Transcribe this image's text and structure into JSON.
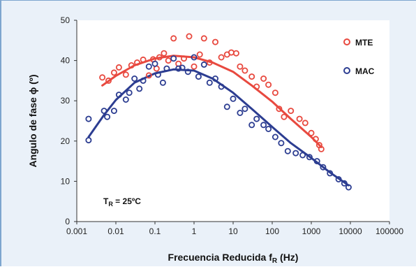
{
  "chart_data": {
    "type": "scatter",
    "xlabel": "Frecuencia Reducida",
    "xlabel_sub": "R",
    "xlabel_symbol": "f",
    "xlabel_unit": "(Hz)",
    "ylabel": "Angulo de fase ϕ (º)",
    "x_scale": "log",
    "xlim": [
      0.001,
      100000
    ],
    "ylim": [
      0,
      50
    ],
    "grid": false,
    "legend_position": "top-right",
    "x_ticks": [
      {
        "value": 0.001,
        "label": "0.001"
      },
      {
        "value": 0.01,
        "label": "0.01"
      },
      {
        "value": 0.1,
        "label": "0.1"
      },
      {
        "value": 1,
        "label": "1"
      },
      {
        "value": 10,
        "label": "10"
      },
      {
        "value": 100,
        "label": "100"
      },
      {
        "value": 1000,
        "label": "1000"
      },
      {
        "value": 10000,
        "label": "10000"
      },
      {
        "value": 100000,
        "label": "100000"
      }
    ],
    "y_ticks": [
      {
        "value": 0,
        "label": "0"
      },
      {
        "value": 10,
        "label": "10"
      },
      {
        "value": 20,
        "label": "20"
      },
      {
        "value": 30,
        "label": "30"
      },
      {
        "value": 40,
        "label": "40"
      },
      {
        "value": 50,
        "label": "50"
      }
    ],
    "annotation": {
      "main": "T",
      "sub": "R",
      "rest": " = 25ºC"
    },
    "series": [
      {
        "name": "MTE",
        "color": "#e8493f",
        "marker": "open-circle",
        "points": [
          [
            0.0045,
            35.8
          ],
          [
            0.0065,
            35.0
          ],
          [
            0.009,
            37.0
          ],
          [
            0.012,
            38.3
          ],
          [
            0.018,
            36.5
          ],
          [
            0.025,
            38.8
          ],
          [
            0.035,
            39.5
          ],
          [
            0.05,
            40.2
          ],
          [
            0.07,
            36.3
          ],
          [
            0.09,
            40.3
          ],
          [
            0.11,
            38.0
          ],
          [
            0.13,
            40.8
          ],
          [
            0.17,
            41.8
          ],
          [
            0.22,
            40.0
          ],
          [
            0.3,
            45.5
          ],
          [
            0.4,
            39.2
          ],
          [
            0.55,
            40.5
          ],
          [
            0.75,
            46.0
          ],
          [
            1.0,
            38.5
          ],
          [
            1.4,
            41.5
          ],
          [
            1.8,
            45.5
          ],
          [
            2.5,
            39.5
          ],
          [
            3.5,
            44.6
          ],
          [
            5.0,
            40.8
          ],
          [
            7.0,
            41.5
          ],
          [
            9.0,
            42.0
          ],
          [
            12.0,
            41.8
          ],
          [
            15.0,
            38.5
          ],
          [
            20.0,
            37.5
          ],
          [
            30.0,
            36.0
          ],
          [
            40.0,
            33.5
          ],
          [
            60.0,
            35.5
          ],
          [
            80.0,
            34.0
          ],
          [
            120.0,
            32.0
          ],
          [
            150.0,
            28.0
          ],
          [
            200.0,
            26.0
          ],
          [
            300.0,
            27.5
          ],
          [
            500.0,
            25.5
          ],
          [
            700.0,
            24.5
          ],
          [
            1000.0,
            22.0
          ],
          [
            1300.0,
            20.5
          ],
          [
            1600.0,
            19.0
          ],
          [
            1800.0,
            18.0
          ]
        ],
        "fit": [
          [
            0.0045,
            33.8
          ],
          [
            0.01,
            36.2
          ],
          [
            0.03,
            38.8
          ],
          [
            0.1,
            40.5
          ],
          [
            0.3,
            41.2
          ],
          [
            1.0,
            40.8
          ],
          [
            3.0,
            39.5
          ],
          [
            10.0,
            37.2
          ],
          [
            30.0,
            33.8
          ],
          [
            100.0,
            29.8
          ],
          [
            300.0,
            25.5
          ],
          [
            1000.0,
            21.0
          ],
          [
            1800.0,
            18.5
          ]
        ]
      },
      {
        "name": "MAC",
        "color": "#2c3d91",
        "marker": "open-circle",
        "points": [
          [
            0.002,
            25.5
          ],
          [
            0.002,
            20.2
          ],
          [
            0.005,
            27.5
          ],
          [
            0.006,
            26.0
          ],
          [
            0.009,
            27.5
          ],
          [
            0.012,
            31.5
          ],
          [
            0.018,
            30.3
          ],
          [
            0.022,
            32.0
          ],
          [
            0.03,
            35.5
          ],
          [
            0.04,
            33.0
          ],
          [
            0.05,
            35.0
          ],
          [
            0.07,
            38.5
          ],
          [
            0.1,
            39.2
          ],
          [
            0.12,
            36.5
          ],
          [
            0.16,
            34.5
          ],
          [
            0.2,
            38.0
          ],
          [
            0.3,
            40.5
          ],
          [
            0.4,
            38.0
          ],
          [
            0.5,
            38.2
          ],
          [
            0.7,
            37.2
          ],
          [
            1.0,
            40.8
          ],
          [
            1.3,
            36.0
          ],
          [
            1.8,
            39.0
          ],
          [
            2.5,
            34.5
          ],
          [
            3.5,
            35.5
          ],
          [
            5.0,
            33.5
          ],
          [
            7.0,
            28.5
          ],
          [
            10.0,
            30.5
          ],
          [
            15.0,
            27.0
          ],
          [
            20.0,
            28.0
          ],
          [
            30.0,
            24.0
          ],
          [
            40.0,
            25.5
          ],
          [
            60.0,
            24.0
          ],
          [
            80.0,
            23.0
          ],
          [
            120.0,
            21.0
          ],
          [
            170.0,
            19.5
          ],
          [
            250.0,
            17.5
          ],
          [
            400.0,
            17.0
          ],
          [
            600.0,
            16.5
          ],
          [
            900.0,
            16.0
          ],
          [
            1400.0,
            15.0
          ],
          [
            2000.0,
            13.5
          ],
          [
            3000.0,
            12.0
          ],
          [
            5000.0,
            10.5
          ],
          [
            7000.0,
            9.5
          ],
          [
            9000.0,
            8.5
          ]
        ],
        "fit": [
          [
            0.002,
            21.0
          ],
          [
            0.005,
            26.5
          ],
          [
            0.01,
            30.2
          ],
          [
            0.03,
            34.5
          ],
          [
            0.1,
            36.8
          ],
          [
            0.3,
            37.8
          ],
          [
            1.0,
            37.5
          ],
          [
            3.0,
            35.5
          ],
          [
            10.0,
            32.0
          ],
          [
            30.0,
            28.0
          ],
          [
            100.0,
            23.5
          ],
          [
            300.0,
            19.5
          ],
          [
            1000.0,
            15.8
          ],
          [
            3000.0,
            12.2
          ],
          [
            9000.0,
            9.0
          ]
        ]
      }
    ]
  }
}
